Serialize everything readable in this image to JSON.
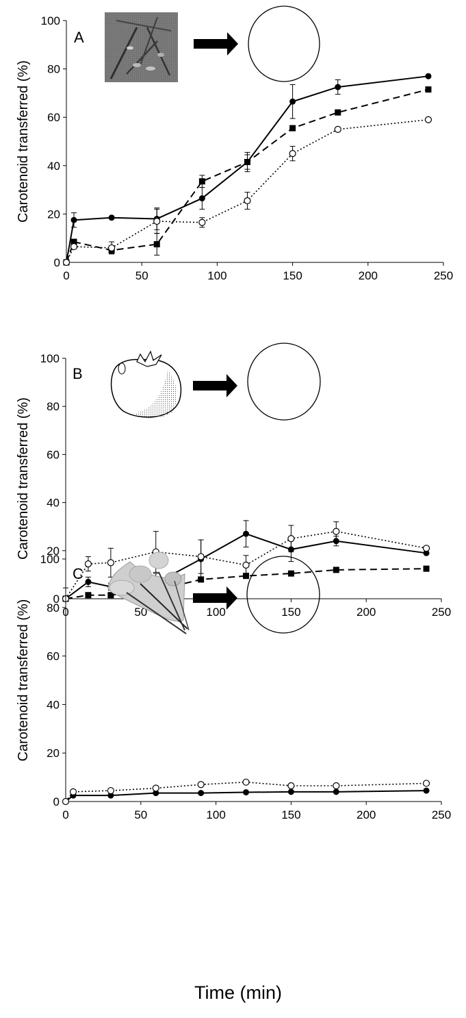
{
  "figure": {
    "xlabel": "Time (min)"
  },
  "chart_data": [
    {
      "type": "line",
      "panel_label": "A",
      "ylabel": "Carotenoid transferred (%)",
      "xlim": [
        0,
        250
      ],
      "ylim": [
        0,
        100
      ],
      "x_ticks": [
        0,
        50,
        100,
        150,
        200,
        250
      ],
      "y_ticks": [
        0,
        20,
        40,
        60,
        80,
        100
      ],
      "series": [
        {
          "style": "solid",
          "marker": "filled-circle",
          "x": [
            0,
            5,
            30,
            60,
            90,
            120,
            150,
            180,
            240
          ],
          "y": [
            0,
            17.5,
            18.5,
            18,
            26.5,
            41.5,
            66.5,
            72.5,
            77
          ],
          "err": [
            0,
            3,
            0,
            4.5,
            4.5,
            4,
            7,
            3,
            0
          ]
        },
        {
          "style": "dashed",
          "marker": "filled-square",
          "x": [
            0,
            5,
            30,
            60,
            90,
            120,
            150,
            180,
            240
          ],
          "y": [
            0,
            8.5,
            5,
            7.5,
            33.5,
            41.5,
            55.5,
            62,
            71.5
          ],
          "err": [
            0,
            0,
            1.5,
            4.5,
            2.5,
            3,
            0,
            0,
            0
          ]
        },
        {
          "style": "dotted",
          "marker": "open-circle",
          "x": [
            0,
            5,
            30,
            60,
            90,
            120,
            150,
            180,
            240
          ],
          "y": [
            0,
            6.5,
            6,
            17,
            16.5,
            25.5,
            45,
            55,
            59
          ],
          "err": [
            0,
            0,
            2.5,
            5,
            2,
            3.5,
            3,
            0,
            0
          ]
        }
      ]
    },
    {
      "type": "line",
      "panel_label": "B",
      "ylabel": "Carotenoid transferred (%)",
      "xlim": [
        0,
        250
      ],
      "ylim": [
        0,
        100
      ],
      "x_ticks": [
        0,
        50,
        100,
        150,
        200,
        250
      ],
      "y_ticks": [
        0,
        20,
        40,
        60,
        80,
        100
      ],
      "series": [
        {
          "style": "solid",
          "marker": "filled-circle",
          "x": [
            0,
            15,
            30,
            60,
            90,
            120,
            150,
            180,
            240
          ],
          "y": [
            0,
            7,
            5,
            6.5,
            16.5,
            27,
            20.5,
            24,
            19
          ],
          "err": [
            0,
            2,
            1.5,
            4,
            8,
            5.5,
            5,
            2,
            0
          ]
        },
        {
          "style": "dashed",
          "marker": "filled-square",
          "x": [
            0,
            15,
            30,
            60,
            90,
            120,
            150,
            180,
            240
          ],
          "y": [
            0,
            1.5,
            1.5,
            3.5,
            8,
            9.5,
            10.5,
            12,
            12.5
          ],
          "err": [
            0,
            0,
            0,
            0,
            0,
            0,
            0,
            0,
            0
          ]
        },
        {
          "style": "dotted",
          "marker": "open-circle",
          "x": [
            0,
            15,
            30,
            60,
            90,
            120,
            150,
            180,
            240
          ],
          "y": [
            0,
            14.5,
            15,
            19.5,
            17.5,
            14,
            25,
            28,
            21
          ],
          "err": [
            4.5,
            3,
            6,
            8.5,
            7,
            4,
            5.5,
            4,
            0
          ]
        }
      ]
    },
    {
      "type": "line",
      "panel_label": "C",
      "ylabel": "Carotenoid transferred (%)",
      "xlim": [
        0,
        250
      ],
      "ylim": [
        0,
        100
      ],
      "x_ticks": [
        0,
        50,
        100,
        150,
        200,
        250
      ],
      "y_ticks": [
        0,
        20,
        40,
        60,
        80,
        100
      ],
      "series": [
        {
          "style": "solid",
          "marker": "filled-circle",
          "x": [
            0,
            5,
            30,
            60,
            90,
            120,
            150,
            180,
            240
          ],
          "y": [
            0,
            2.5,
            2.5,
            3.5,
            3.5,
            3.8,
            4,
            4,
            4.5
          ],
          "err": [
            0,
            0,
            0,
            0,
            0,
            0,
            0,
            0,
            0
          ]
        },
        {
          "style": "dotted",
          "marker": "open-circle",
          "x": [
            0,
            5,
            30,
            60,
            90,
            120,
            150,
            180,
            240
          ],
          "y": [
            0,
            4,
            4.5,
            5.5,
            7,
            8,
            6.5,
            6.5,
            7.5
          ],
          "err": [
            0,
            0,
            0,
            0,
            0,
            0,
            0,
            0,
            0
          ]
        }
      ]
    }
  ]
}
